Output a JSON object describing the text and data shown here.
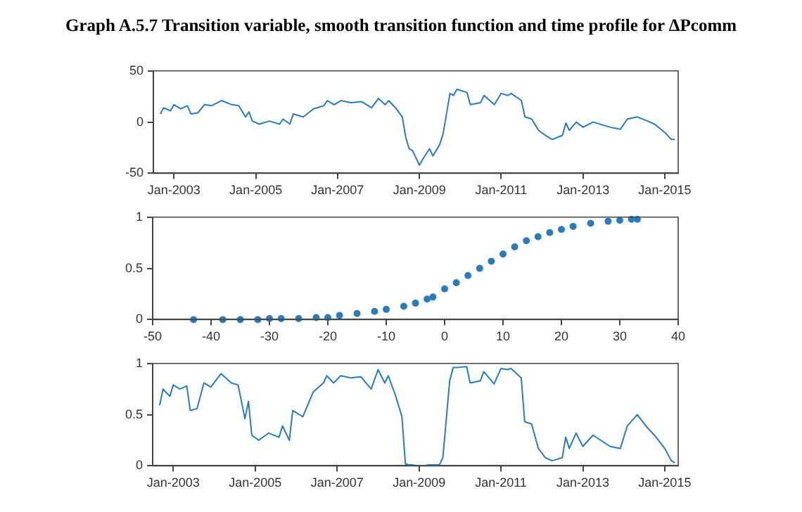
{
  "chart_data": [
    {
      "type": "line",
      "title": "Graph A.5.7 Transition variable, smooth transition function and time profile for ΔPcomm",
      "color": "#2b7bba",
      "x": [
        "2002-09",
        "2002-10",
        "2002-12",
        "2003-01",
        "2003-03",
        "2003-05",
        "2003-06",
        "2003-08",
        "2003-10",
        "2003-12",
        "2004-03",
        "2004-06",
        "2004-08",
        "2004-10",
        "2004-11",
        "2004-12",
        "2005-02",
        "2005-05",
        "2005-08",
        "2005-09",
        "2005-11",
        "2005-12",
        "2006-03",
        "2006-06",
        "2006-09",
        "2006-10",
        "2006-12",
        "2007-02",
        "2007-05",
        "2007-08",
        "2007-09",
        "2007-11",
        "2008-01",
        "2008-03",
        "2008-04",
        "2008-06",
        "2008-08",
        "2008-09",
        "2008-10",
        "2008-11",
        "2009-01",
        "2009-02",
        "2009-04",
        "2009-05",
        "2009-07",
        "2009-08",
        "2009-10",
        "2009-11",
        "2009-12",
        "2010-03",
        "2010-04",
        "2010-07",
        "2010-08",
        "2010-11",
        "2011-01",
        "2011-03",
        "2011-04",
        "2011-07",
        "2011-08",
        "2011-10",
        "2011-12",
        "2012-02",
        "2012-04",
        "2012-07",
        "2012-08",
        "2012-09",
        "2012-11",
        "2013-01",
        "2013-04",
        "2013-09",
        "2013-12",
        "2014-02",
        "2014-05",
        "2014-08",
        "2014-10",
        "2015-01",
        "2015-03",
        "2015-04"
      ],
      "values": [
        8,
        14,
        11,
        17,
        13,
        16,
        8,
        9,
        17,
        16,
        21,
        17,
        16,
        5,
        10,
        1,
        -2,
        1,
        -2,
        3,
        -2,
        8,
        5,
        13,
        16,
        21,
        17,
        21,
        19,
        20,
        18,
        14,
        23,
        17,
        21,
        14,
        5,
        -15,
        -26,
        -28,
        -42,
        -36,
        -26,
        -33,
        -22,
        -11,
        28,
        26,
        32,
        29,
        17,
        19,
        26,
        17,
        28,
        26,
        28,
        21,
        5,
        3,
        -8,
        -13,
        -17,
        -13,
        -1,
        -8,
        0,
        -5,
        0,
        -5,
        -7,
        3,
        5,
        1,
        -2,
        -10,
        -17,
        -17
      ],
      "xlim": [
        "2002-07",
        "2015-05"
      ],
      "xticks": [
        {
          "value": "2003-01",
          "label": "Jan-2003"
        },
        {
          "value": "2005-01",
          "label": "Jan-2005"
        },
        {
          "value": "2007-01",
          "label": "Jan-2007"
        },
        {
          "value": "2009-01",
          "label": "Jan-2009"
        },
        {
          "value": "2011-01",
          "label": "Jan-2011"
        },
        {
          "value": "2013-01",
          "label": "Jan-2013"
        },
        {
          "value": "2015-01",
          "label": "Jan-2015"
        }
      ],
      "ylim": [
        -50,
        50
      ],
      "yticks": [
        -50,
        0,
        50
      ]
    },
    {
      "type": "scatter",
      "color": "#2b7bba",
      "marker": "circle",
      "x": [
        -43,
        -38,
        -35,
        -32,
        -30,
        -28,
        -25,
        -22,
        -20,
        -18,
        -15,
        -12,
        -10,
        -7,
        -5,
        -3,
        -2,
        0,
        2,
        4,
        6,
        8,
        10,
        12,
        14,
        16,
        18,
        20,
        22,
        25,
        28,
        30,
        32,
        33
      ],
      "values": [
        0,
        0,
        0,
        0,
        0.01,
        0.01,
        0.01,
        0.02,
        0.02,
        0.04,
        0.06,
        0.08,
        0.1,
        0.13,
        0.16,
        0.2,
        0.22,
        0.3,
        0.36,
        0.43,
        0.5,
        0.57,
        0.64,
        0.71,
        0.77,
        0.81,
        0.85,
        0.88,
        0.91,
        0.94,
        0.96,
        0.97,
        0.98,
        0.98
      ],
      "xlim": [
        -50,
        40
      ],
      "xticks": [
        -50,
        -40,
        -30,
        -20,
        -10,
        0,
        10,
        20,
        30,
        40
      ],
      "ylim": [
        0,
        1
      ],
      "yticks": [
        0,
        {
          "value": 0.5,
          "label": "0.5"
        },
        1
      ]
    },
    {
      "type": "line",
      "color": "#2b7bba",
      "x": [
        "2002-09",
        "2002-10",
        "2002-12",
        "2003-01",
        "2003-03",
        "2003-05",
        "2003-06",
        "2003-08",
        "2003-10",
        "2003-12",
        "2004-03",
        "2004-06",
        "2004-08",
        "2004-10",
        "2004-11",
        "2004-12",
        "2005-02",
        "2005-05",
        "2005-08",
        "2005-09",
        "2005-11",
        "2005-12",
        "2006-03",
        "2006-06",
        "2006-09",
        "2006-10",
        "2006-12",
        "2007-02",
        "2007-05",
        "2007-08",
        "2007-09",
        "2007-11",
        "2008-01",
        "2008-03",
        "2008-04",
        "2008-06",
        "2008-08",
        "2008-09",
        "2008-10",
        "2008-11",
        "2009-01",
        "2009-02",
        "2009-04",
        "2009-05",
        "2009-07",
        "2009-08",
        "2009-10",
        "2009-11",
        "2009-12",
        "2010-03",
        "2010-04",
        "2010-07",
        "2010-08",
        "2010-11",
        "2011-01",
        "2011-03",
        "2011-04",
        "2011-07",
        "2011-08",
        "2011-10",
        "2011-12",
        "2012-02",
        "2012-04",
        "2012-07",
        "2012-08",
        "2012-09",
        "2012-11",
        "2013-01",
        "2013-04",
        "2013-09",
        "2013-12",
        "2014-02",
        "2014-05",
        "2014-08",
        "2014-10",
        "2015-01",
        "2015-03",
        "2015-04"
      ],
      "values": [
        0.59,
        0.75,
        0.68,
        0.79,
        0.75,
        0.78,
        0.54,
        0.56,
        0.81,
        0.77,
        0.9,
        0.81,
        0.79,
        0.46,
        0.63,
        0.3,
        0.25,
        0.32,
        0.28,
        0.39,
        0.25,
        0.54,
        0.48,
        0.72,
        0.81,
        0.88,
        0.81,
        0.88,
        0.86,
        0.87,
        0.83,
        0.75,
        0.94,
        0.81,
        0.88,
        0.7,
        0.48,
        0.02,
        0.01,
        0.01,
        0,
        0,
        0.01,
        0.01,
        0.01,
        0.08,
        0.83,
        0.96,
        0.96,
        0.97,
        0.81,
        0.83,
        0.92,
        0.8,
        0.95,
        0.94,
        0.95,
        0.86,
        0.43,
        0.41,
        0.17,
        0.08,
        0.05,
        0.08,
        0.28,
        0.17,
        0.32,
        0.19,
        0.3,
        0.19,
        0.17,
        0.39,
        0.5,
        0.37,
        0.3,
        0.17,
        0.05,
        0.03
      ],
      "xlim": [
        "2002-07",
        "2015-05"
      ],
      "xticks": [
        {
          "value": "2003-01",
          "label": "Jan-2003"
        },
        {
          "value": "2005-01",
          "label": "Jan-2005"
        },
        {
          "value": "2007-01",
          "label": "Jan-2007"
        },
        {
          "value": "2009-01",
          "label": "Jan-2009"
        },
        {
          "value": "2011-01",
          "label": "Jan-2011"
        },
        {
          "value": "2013-01",
          "label": "Jan-2013"
        },
        {
          "value": "2015-01",
          "label": "Jan-2015"
        }
      ],
      "ylim": [
        0,
        1
      ],
      "yticks": [
        0,
        {
          "value": 0.5,
          "label": "0.5"
        },
        1
      ]
    }
  ]
}
